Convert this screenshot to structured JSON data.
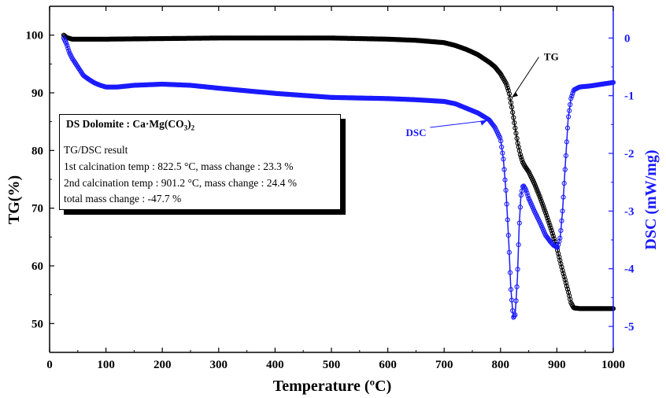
{
  "chart_data": {
    "type": "line",
    "xlabel": "Temperature (ºC)",
    "xlim": [
      0,
      1000
    ],
    "x_ticks": [
      "0",
      "100",
      "200",
      "300",
      "400",
      "500",
      "600",
      "700",
      "800",
      "900",
      "1000"
    ],
    "y_left": {
      "label": "TG(%)",
      "lim": [
        45,
        105
      ],
      "ticks": [
        "50",
        "60",
        "70",
        "80",
        "90",
        "100"
      ],
      "color": "#000000"
    },
    "y_right": {
      "label": "DSC (mW/mg)",
      "lim": [
        -5.45,
        0.55
      ],
      "ticks": [
        "-5",
        "-4",
        "-3",
        "-2",
        "-1",
        "0"
      ],
      "color": "#1a1aff"
    },
    "series": [
      {
        "name": "TG",
        "axis": "left",
        "color": "#000000",
        "marker": "circle-open",
        "x": [
          25,
          30,
          40,
          60,
          100,
          200,
          300,
          400,
          500,
          600,
          650,
          700,
          720,
          740,
          760,
          780,
          790,
          800,
          810,
          815,
          820,
          825,
          830,
          835,
          840,
          845,
          850,
          860,
          870,
          880,
          890,
          900,
          910,
          920,
          925,
          930,
          940,
          960,
          980,
          1000
        ],
        "y": [
          100,
          99.6,
          99.3,
          99.3,
          99.3,
          99.4,
          99.5,
          99.5,
          99.5,
          99.3,
          99.1,
          98.7,
          98.2,
          97.5,
          96.6,
          95.3,
          94.5,
          93.3,
          91.6,
          90.1,
          87.5,
          84.5,
          81.5,
          79.3,
          77.8,
          77.0,
          76.3,
          74.3,
          71.9,
          69.2,
          66.3,
          63.1,
          59.2,
          55.6,
          53.6,
          52.7,
          52.6,
          52.6,
          52.6,
          52.6
        ]
      },
      {
        "name": "DSC",
        "axis": "right",
        "color": "#1a1aff",
        "marker": "circle-open",
        "x": [
          25,
          30,
          35,
          40,
          50,
          60,
          70,
          80,
          90,
          100,
          120,
          150,
          200,
          250,
          300,
          400,
          500,
          600,
          650,
          700,
          720,
          740,
          760,
          780,
          790,
          800,
          805,
          810,
          815,
          818,
          822.5,
          826,
          830,
          833,
          836,
          840,
          845,
          850,
          860,
          870,
          880,
          890,
          895,
          901.2,
          906,
          910,
          915,
          920,
          925,
          930,
          940,
          960,
          980,
          1000
        ],
        "y": [
          0,
          -0.1,
          -0.25,
          -0.35,
          -0.5,
          -0.65,
          -0.72,
          -0.78,
          -0.82,
          -0.85,
          -0.85,
          -0.82,
          -0.8,
          -0.82,
          -0.87,
          -0.96,
          -1.03,
          -1.05,
          -1.07,
          -1.1,
          -1.14,
          -1.22,
          -1.3,
          -1.42,
          -1.55,
          -1.75,
          -2.1,
          -2.7,
          -3.6,
          -4.3,
          -4.85,
          -4.8,
          -4.15,
          -3.3,
          -2.75,
          -2.55,
          -2.63,
          -2.78,
          -3.0,
          -3.2,
          -3.42,
          -3.55,
          -3.6,
          -3.63,
          -3.45,
          -3.0,
          -2.2,
          -1.4,
          -1.05,
          -0.9,
          -0.85,
          -0.83,
          -0.8,
          -0.77
        ]
      }
    ],
    "annotations": [
      {
        "text": "TG",
        "color": "#000000"
      },
      {
        "text": "DSC",
        "color": "#1a1aff"
      }
    ],
    "legend": "none",
    "grid": false
  },
  "infobox": {
    "title_prefix": "DS Dolomite : Ca·Mg(CO",
    "title_sub": "3",
    "title_suffix": ")",
    "title_sub2": "2",
    "line1": "TG/DSC result",
    "line2": "1st  calcination temp : 822.5 °C, mass change : 23.3 %",
    "line3": "2nd calcination temp : 901.2 °C, mass change : 24.4 %",
    "line4": "total mass change : -47.7 %"
  }
}
